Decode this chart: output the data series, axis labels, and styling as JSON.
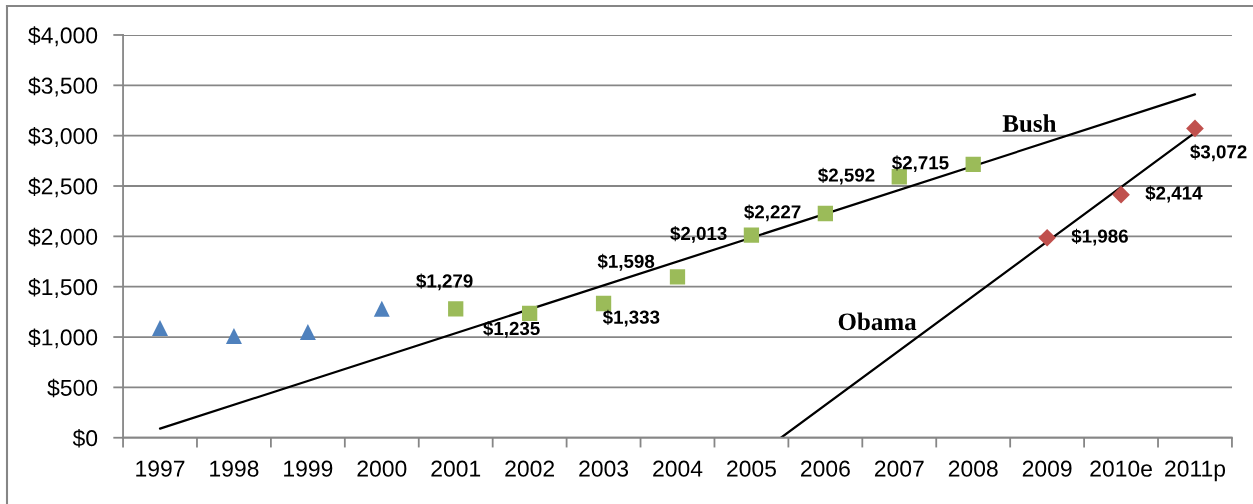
{
  "chart_data": {
    "type": "scatter",
    "xlim": [
      1996.5,
      2011.5
    ],
    "xticks": [
      {
        "value": 1996.5,
        "label": null
      },
      1997,
      {
        "value": 1997.5,
        "label": null
      },
      1998,
      {
        "value": 1998.5,
        "label": null
      },
      1999,
      {
        "value": 1999.5,
        "label": null
      },
      2000,
      {
        "value": 2000.5,
        "label": null
      },
      2001,
      {
        "value": 2001.5,
        "label": null
      },
      2002,
      {
        "value": 2002.5,
        "label": null
      },
      2003,
      {
        "value": 2003.5,
        "label": null
      },
      2004,
      {
        "value": 2004.5,
        "label": null
      },
      2005,
      {
        "value": 2005.5,
        "label": null
      },
      2006,
      {
        "value": 2006.5,
        "label": null
      },
      2007,
      {
        "value": 2007.5,
        "label": null
      },
      2008,
      {
        "value": 2008.5,
        "label": null
      },
      2009,
      {
        "value": 2009.5,
        "label": null
      },
      {
        "value": 2010,
        "label": "2010e"
      },
      {
        "value": 2010.5,
        "label": null
      },
      {
        "value": 2011,
        "label": "2011p"
      },
      {
        "value": 2011.5,
        "label": null
      }
    ],
    "ylim": [
      0,
      4000
    ],
    "yticks": [
      {
        "value": 0,
        "label": "$0"
      },
      {
        "value": 500,
        "label": "$500"
      },
      {
        "value": 1000,
        "label": "$1,000"
      },
      {
        "value": 1500,
        "label": "$1,500"
      },
      {
        "value": 2000,
        "label": "$2,000"
      },
      {
        "value": 2500,
        "label": "$2,500"
      },
      {
        "value": 3000,
        "label": "$3,000"
      },
      {
        "value": 3500,
        "label": "$3,500"
      },
      {
        "value": 4000,
        "label": "$4,000"
      }
    ],
    "grid": "y",
    "series": [
      {
        "x": [
          1997,
          1998,
          1999,
          2000
        ],
        "values": [
          1090,
          1010,
          1050,
          1280
        ],
        "color": "#4f81bd",
        "marker": "triangle"
      },
      {
        "x": [
          2001,
          2002,
          2003,
          2004,
          2005,
          2006,
          2007,
          2008
        ],
        "values": [
          1279,
          1235,
          1333,
          1598,
          2013,
          2227,
          2592,
          2715
        ],
        "color": "#9bbb59",
        "marker": "square",
        "value_labels": [
          "$1,279",
          "$1,235",
          "$1,333",
          "$1,598",
          "$2,013",
          "$2,227",
          "$2,592",
          "$2,715"
        ]
      },
      {
        "x": [
          2009,
          2010,
          2011
        ],
        "values": [
          1986,
          2414,
          3072
        ],
        "color": "#c0504d",
        "marker": "diamond",
        "value_labels": [
          "$1,986",
          "$2,414",
          "$3,072"
        ]
      },
      {
        "type": "line",
        "name": "Bush",
        "x": [
          1997,
          2011
        ],
        "values": [
          90,
          3410
        ],
        "color": "#000000",
        "marker": "none",
        "line_style": "solid"
      },
      {
        "type": "line",
        "name": "Obama",
        "x": [
          2005.4,
          2011
        ],
        "values": [
          0,
          3030
        ],
        "color": "#000000",
        "marker": "none",
        "line_style": "solid"
      }
    ]
  }
}
